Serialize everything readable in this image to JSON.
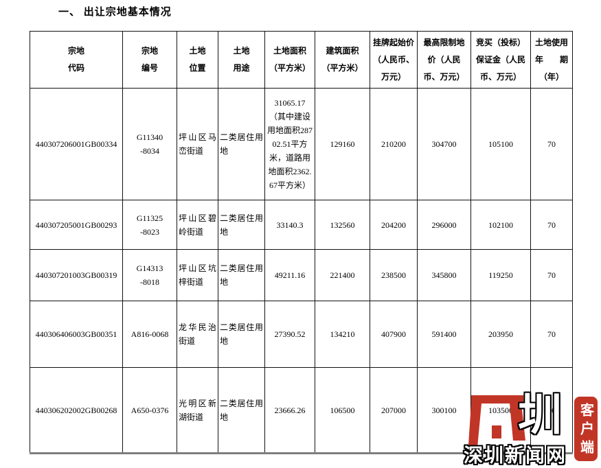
{
  "page": {
    "title": "一、 出让宗地基本情况"
  },
  "table": {
    "columns": [
      {
        "key": "parcel_code",
        "label": "宗地\n代码"
      },
      {
        "key": "parcel_no",
        "label": "宗地\n编号"
      },
      {
        "key": "location",
        "label": "土地\n位置"
      },
      {
        "key": "land_use",
        "label": "土地\n用途"
      },
      {
        "key": "land_area",
        "label": "土地面积\n（平方米）"
      },
      {
        "key": "building_area",
        "label": "建筑面积\n（平方米）"
      },
      {
        "key": "starting_price",
        "label": "挂牌起始价\n（人民币、\n万元）"
      },
      {
        "key": "max_price",
        "label": "最高限制地\n价（人民\n币、万元）"
      },
      {
        "key": "deposit",
        "label": "竞买（投标）\n保证金（人民\n币、万元）"
      },
      {
        "key": "tenure",
        "label": "土地使用\n年　　期\n（年）"
      }
    ],
    "rows": [
      [
        "440307206001GB00334",
        "G11340\n-8034",
        "坪山区马峦街道",
        "二类居住用地",
        "31065.17（其中建设用地面积28702.51平方米，道路用地面积2362.67平方米）",
        "129160",
        "210200",
        "304700",
        "105100",
        "70"
      ],
      [
        "440307205001GB00293",
        "G11325\n-8023",
        "坪山区碧岭街道",
        "二类居住用地",
        "33140.3",
        "132560",
        "204200",
        "296000",
        "102100",
        "70"
      ],
      [
        "440307201003GB00319",
        "G14313\n-8018",
        "坪山区坑梓街道",
        "二类居住用地",
        "49211.16",
        "221400",
        "238500",
        "345800",
        "119250",
        "70"
      ],
      [
        "440306406003GB00351",
        "A816-0068",
        "龙华民治街道",
        "二类居住用地",
        "27390.52",
        "134210",
        "407900",
        "591400",
        "203950",
        "70"
      ],
      [
        "440306202002GB00268",
        "A650-0376",
        "光明区新湖街道",
        "二类居住用地",
        "23666.26",
        "106500",
        "207000",
        "300100",
        "103500",
        "70"
      ]
    ]
  },
  "watermark": {
    "site_name": "深圳新闻网",
    "badge_label": "客户端",
    "zhen_glyph": "圳",
    "brand_red": "#c13527"
  }
}
